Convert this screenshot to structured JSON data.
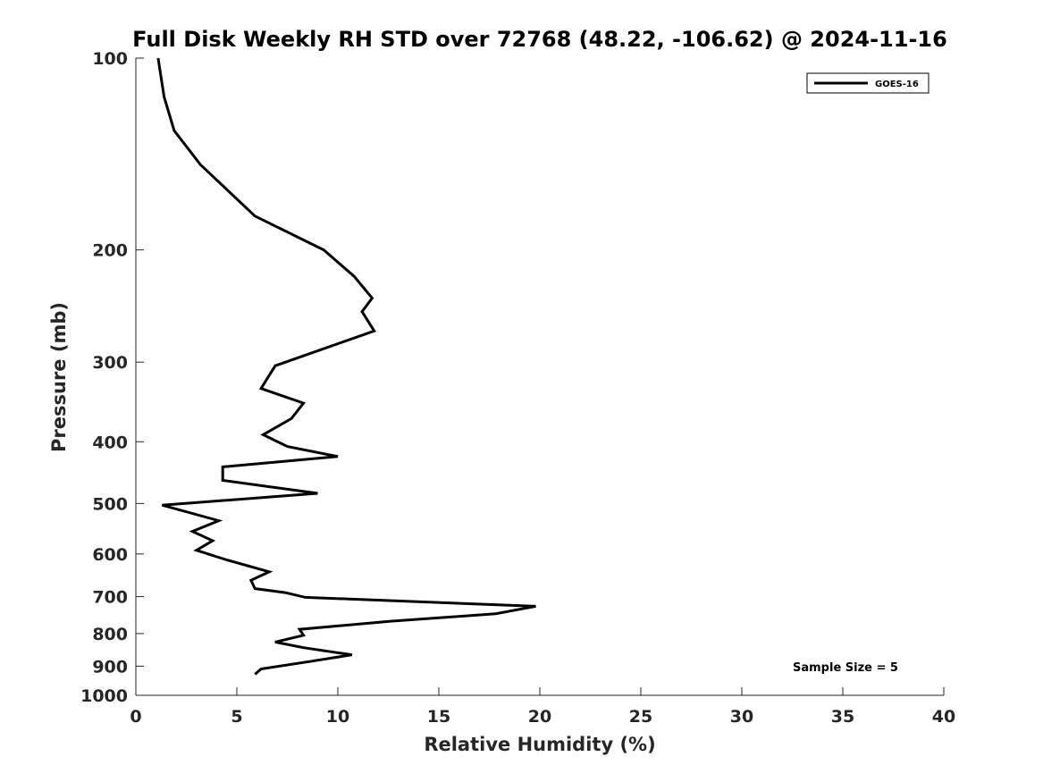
{
  "chart_data": {
    "type": "line",
    "title": "Full Disk Weekly RH STD over 72768 (48.22, -106.62) @ 2024-11-16",
    "xlabel": "Relative Humidity (%)",
    "ylabel": "Pressure (mb)",
    "xlim": [
      0,
      40
    ],
    "ylim": [
      100,
      1000
    ],
    "y_scale": "log",
    "y_reversed": true,
    "xticks": [
      0,
      5,
      10,
      15,
      20,
      25,
      30,
      35,
      40
    ],
    "yticks": [
      100,
      200,
      300,
      400,
      500,
      600,
      700,
      800,
      900,
      1000
    ],
    "grid": false,
    "legend_position": "top-right",
    "annotation": "Sample Size = 5",
    "series": [
      {
        "name": "GOES-16",
        "color": "#000000",
        "x": [
          1.1,
          1.4,
          1.9,
          3.2,
          5.9,
          9.3,
          10.8,
          11.7,
          11.2,
          11.8,
          6.9,
          6.2,
          8.3,
          7.7,
          6.3,
          7.5,
          10.0,
          4.3,
          4.3,
          9.0,
          1.3,
          4.1,
          2.8,
          3.8,
          3.0,
          4.5,
          6.6,
          5.7,
          5.9,
          7.4,
          8.4,
          19.8,
          17.8,
          12.6,
          8.1,
          8.3,
          6.9,
          8.3,
          10.7,
          8.6,
          6.2,
          5.9
        ],
        "y": [
          100,
          115,
          130,
          147,
          177,
          200,
          220,
          238,
          250,
          268,
          304,
          330,
          348,
          368,
          390,
          407,
          422,
          438,
          460,
          482,
          503,
          532,
          553,
          572,
          592,
          613,
          640,
          660,
          680,
          690,
          702,
          725,
          745,
          765,
          788,
          805,
          825,
          842,
          864,
          885,
          909,
          927
        ]
      }
    ]
  }
}
